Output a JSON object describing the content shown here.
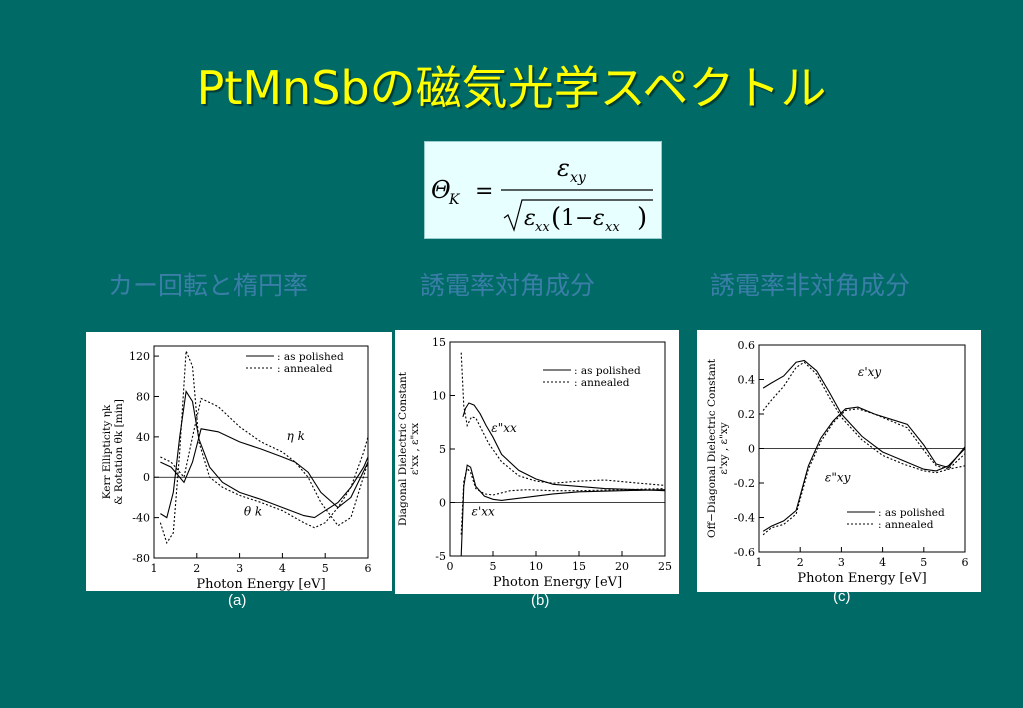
{
  "slide": {
    "title": "PtMnSbの磁気光学スペクトル",
    "formula": {
      "lhs": "Θ",
      "lhs_sub": "K",
      "eq": "=",
      "num": "ε",
      "num_sub": "xy",
      "den_a": "ε",
      "den_a_sub": "xx",
      "den_one": "1",
      "den_minus": "−",
      "den_b": "ε",
      "den_b_sub": "xx"
    },
    "subtitles": [
      "カー回転と楕円率",
      "誘電率対角成分",
      "誘電率非対角成分"
    ],
    "panel_labels": [
      "(a)",
      "(b)",
      "(c)"
    ]
  },
  "chart_data": [
    {
      "type": "line",
      "xlabel": "Photon Energy  [eV]",
      "ylabel_line1": "Kerr Ellipticity ηk",
      "ylabel_line2": "& Rotation θk [min]",
      "xlim": [
        1,
        6
      ],
      "ylim": [
        -80,
        130
      ],
      "xticks": [
        1,
        2,
        3,
        4,
        5,
        6
      ],
      "yticks": [
        120,
        80,
        40,
        0,
        -40,
        -80
      ],
      "legend_position": "top-right",
      "legend": [
        {
          "label": ": as polished",
          "style": "solid"
        },
        {
          "label": ": annealed",
          "style": "dotted"
        }
      ],
      "annotations": [
        {
          "text": "η k",
          "x": 4.1,
          "y": 37
        },
        {
          "text": "θ k",
          "x": 3.1,
          "y": -38
        }
      ],
      "series": [
        {
          "name": "θk as polished",
          "style": "solid",
          "x": [
            1.15,
            1.3,
            1.45,
            1.6,
            1.75,
            1.9,
            2.05,
            2.3,
            2.6,
            3,
            3.5,
            4,
            4.5,
            4.75,
            5,
            5.3,
            5.6,
            5.9,
            6
          ],
          "y": [
            -36,
            -40,
            -15,
            40,
            85,
            75,
            38,
            10,
            -5,
            -15,
            -22,
            -30,
            -38,
            -40,
            -33,
            -25,
            -10,
            10,
            20
          ]
        },
        {
          "name": "θk annealed",
          "style": "dotted",
          "x": [
            1.15,
            1.3,
            1.45,
            1.6,
            1.75,
            1.9,
            2.05,
            2.3,
            2.6,
            3,
            3.5,
            4,
            4.5,
            4.75,
            5,
            5.3,
            5.6,
            5.9,
            6
          ],
          "y": [
            -45,
            -65,
            -55,
            25,
            125,
            110,
            35,
            0,
            -10,
            -18,
            -25,
            -33,
            -45,
            -50,
            -45,
            -30,
            -10,
            25,
            40
          ]
        },
        {
          "name": "ηk as polished",
          "style": "solid",
          "x": [
            1.15,
            1.4,
            1.7,
            1.9,
            2.1,
            2.5,
            3,
            3.5,
            4,
            4.3,
            4.6,
            4.9,
            5.3,
            5.6,
            6
          ],
          "y": [
            15,
            10,
            -5,
            15,
            48,
            45,
            35,
            28,
            20,
            15,
            5,
            -15,
            -30,
            -20,
            15
          ]
        },
        {
          "name": "ηk annealed",
          "style": "dotted",
          "x": [
            1.15,
            1.4,
            1.7,
            1.9,
            2.1,
            2.5,
            3,
            3.5,
            4,
            4.3,
            4.6,
            4.9,
            5.3,
            5.6,
            6
          ],
          "y": [
            20,
            15,
            0,
            40,
            78,
            70,
            50,
            35,
            25,
            15,
            0,
            -25,
            -48,
            -40,
            15
          ]
        }
      ]
    },
    {
      "type": "line",
      "xlabel": "Photon Energy  [eV]",
      "ylabel_line1": "Diagonal Dielectric Constant",
      "ylabel_line2": "ε'xx , ε\"xx",
      "xlim": [
        0,
        25
      ],
      "ylim": [
        -5,
        15
      ],
      "xticks": [
        0,
        5,
        10,
        15,
        20,
        25
      ],
      "yticks": [
        15,
        10,
        5,
        0,
        -5
      ],
      "legend_position": "top-right",
      "legend": [
        {
          "label": ": as polished",
          "style": "solid"
        },
        {
          "label": ": annealed",
          "style": "dotted"
        }
      ],
      "annotations": [
        {
          "text": "ε\"xx",
          "x": 4.8,
          "y": 6.6
        },
        {
          "text": "ε'xx",
          "x": 2.5,
          "y": -1.2
        }
      ],
      "series": [
        {
          "name": "ε\"xx as polished",
          "style": "solid",
          "x": [
            1.5,
            1.8,
            2.2,
            2.8,
            3.5,
            4.2,
            5,
            6,
            8,
            10,
            12,
            15,
            18,
            22,
            25
          ],
          "y": [
            8,
            8.8,
            9.3,
            9.1,
            8.3,
            7.2,
            6.1,
            4.5,
            3,
            2.2,
            1.7,
            1.5,
            1.3,
            1.2,
            1.1
          ]
        },
        {
          "name": "ε\"xx annealed",
          "style": "dotted",
          "x": [
            1.3,
            1.6,
            2,
            2.5,
            3,
            3.5,
            4.5,
            6,
            8,
            10,
            12,
            15,
            18,
            22,
            25
          ],
          "y": [
            14,
            9,
            7.2,
            8,
            7.9,
            7.1,
            5.5,
            3.8,
            2.5,
            2,
            1.8,
            2,
            2.1,
            1.8,
            1.6
          ]
        },
        {
          "name": "ε'xx as polished",
          "style": "solid",
          "x": [
            1.3,
            1.6,
            2,
            2.4,
            3,
            4,
            5,
            6,
            7,
            9,
            12,
            15,
            20,
            25
          ],
          "y": [
            -5,
            1.5,
            3.5,
            3.3,
            1.5,
            0.6,
            0.3,
            0.2,
            0.3,
            0.5,
            0.8,
            1,
            1.1,
            1.2
          ]
        },
        {
          "name": "ε'xx annealed",
          "style": "dotted",
          "x": [
            1.3,
            1.6,
            2,
            2.4,
            3,
            4,
            5,
            6,
            7,
            9,
            12,
            15,
            20,
            25
          ],
          "y": [
            -3,
            2,
            3.2,
            2.8,
            1.3,
            0.8,
            0.7,
            0.9,
            1.1,
            1.2,
            1.1,
            1.1,
            1.2,
            1.3
          ]
        }
      ]
    },
    {
      "type": "line",
      "xlabel": "Photon Energy  [eV]",
      "ylabel_line1": "Off−Diagonal Dielectric Constant",
      "ylabel_line2": "ε'xy , ε\"xy",
      "xlim": [
        1,
        6
      ],
      "ylim": [
        -0.6,
        0.6
      ],
      "xticks": [
        1,
        2,
        3,
        4,
        5,
        6
      ],
      "yticks": [
        0.6,
        0.4,
        0.2,
        0,
        -0.2,
        -0.4,
        -0.6
      ],
      "legend_position": "bottom-right",
      "legend": [
        {
          "label": ": as polished",
          "style": "solid"
        },
        {
          "label": ": annealed",
          "style": "dotted"
        }
      ],
      "annotations": [
        {
          "text": "ε'xy",
          "x": 3.4,
          "y": 0.42
        },
        {
          "text": "ε\"xy",
          "x": 2.6,
          "y": -0.19
        }
      ],
      "series": [
        {
          "name": "ε'xy as polished",
          "style": "solid",
          "x": [
            1.1,
            1.3,
            1.6,
            1.9,
            2.1,
            2.4,
            2.7,
            3,
            3.5,
            4,
            4.5,
            5,
            5.3,
            5.6,
            6
          ],
          "y": [
            0.35,
            0.38,
            0.42,
            0.5,
            0.51,
            0.45,
            0.33,
            0.2,
            0.07,
            -0.02,
            -0.07,
            -0.12,
            -0.13,
            -0.1,
            0
          ]
        },
        {
          "name": "ε'xy annealed",
          "style": "dotted",
          "x": [
            1.1,
            1.3,
            1.6,
            1.9,
            2.1,
            2.4,
            2.7,
            3,
            3.5,
            4,
            4.5,
            5,
            5.3,
            5.6,
            6
          ],
          "y": [
            0.22,
            0.28,
            0.36,
            0.47,
            0.5,
            0.43,
            0.3,
            0.18,
            0.05,
            -0.04,
            -0.09,
            -0.13,
            -0.14,
            -0.12,
            -0.1
          ]
        },
        {
          "name": "ε\"xy as polished",
          "style": "solid",
          "x": [
            1.1,
            1.3,
            1.6,
            1.9,
            2.2,
            2.5,
            2.8,
            3.1,
            3.4,
            3.8,
            4.2,
            4.6,
            5,
            5.3,
            5.6,
            6
          ],
          "y": [
            -0.48,
            -0.45,
            -0.42,
            -0.36,
            -0.1,
            0.06,
            0.16,
            0.23,
            0.24,
            0.2,
            0.17,
            0.14,
            0.02,
            -0.09,
            -0.11,
            0.01
          ]
        },
        {
          "name": "ε\"xy annealed",
          "style": "dotted",
          "x": [
            1.1,
            1.3,
            1.6,
            1.9,
            2.2,
            2.5,
            2.8,
            3.1,
            3.4,
            3.8,
            4.2,
            4.6,
            5,
            5.3,
            5.6,
            6
          ],
          "y": [
            -0.5,
            -0.46,
            -0.44,
            -0.38,
            -0.12,
            0.04,
            0.15,
            0.22,
            0.23,
            0.2,
            0.16,
            0.12,
            -0.01,
            -0.1,
            -0.12,
            -0.03
          ]
        }
      ]
    }
  ]
}
